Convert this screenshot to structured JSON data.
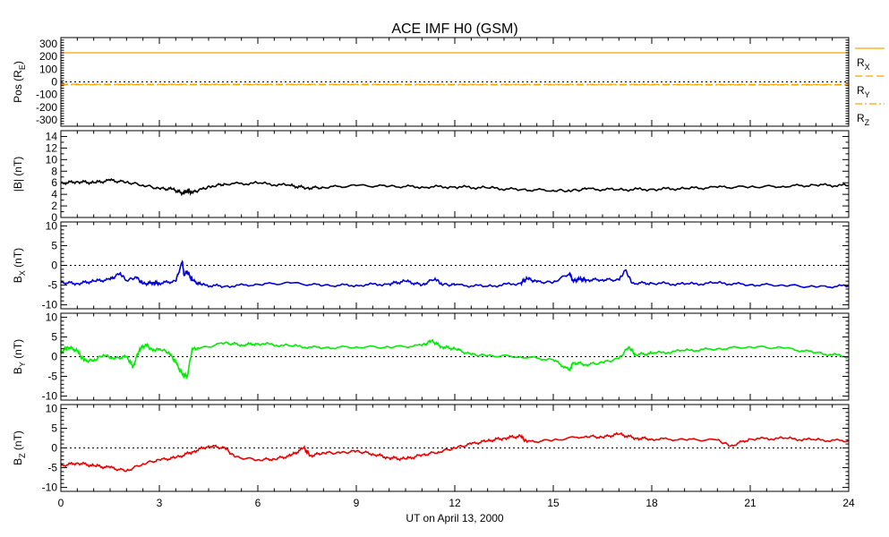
{
  "chart_data": {
    "type": "line",
    "title": "ACE IMF H0 (GSM)",
    "xlabel": "UT on April 13, 2000",
    "xlim": [
      0,
      24
    ],
    "x_ticks": [
      0,
      3,
      6,
      9,
      12,
      15,
      18,
      21,
      24
    ],
    "x_tick_labels": [
      "0",
      "3",
      "6",
      "9",
      "12",
      "15",
      "18",
      "21",
      "24"
    ],
    "panels": [
      {
        "id": "pos",
        "ylabel_main": "Pos (R",
        "ylabel_sub": "E",
        "ylabel_end": ")",
        "ylim": [
          -350,
          350
        ],
        "y_ticks": [
          300,
          200,
          100,
          0,
          -100,
          -200,
          -300
        ],
        "zero_line": true,
        "legend": [
          {
            "main": "R",
            "sub": "X",
            "style": "solid",
            "color": "#ffa500"
          },
          {
            "main": "R",
            "sub": "Y",
            "style": "dashed",
            "color": "#ffa500"
          },
          {
            "main": "R",
            "sub": "Z",
            "style": "dashdot",
            "color": "#ffa500"
          }
        ],
        "series": [
          {
            "name": "R_X",
            "color": "#ffa500",
            "style": "solid",
            "x": [
              0,
              24
            ],
            "values": [
              230,
              230
            ]
          },
          {
            "name": "R_Y",
            "color": "#ffa500",
            "style": "dashed",
            "x": [
              0,
              24
            ],
            "values": [
              -18,
              -20
            ]
          },
          {
            "name": "R_Z",
            "color": "#ffa500",
            "style": "dashdot",
            "x": [
              0,
              24
            ],
            "values": [
              -22,
              -24
            ]
          }
        ]
      },
      {
        "id": "btot",
        "ylabel_main": "|B| (nT)",
        "ylabel_sub": "",
        "ylabel_end": "",
        "ylim": [
          0,
          15
        ],
        "y_ticks": [
          14,
          12,
          10,
          8,
          6,
          4,
          2,
          0
        ],
        "zero_line": false,
        "series": [
          {
            "name": "|B|",
            "color": "#000000",
            "style": "solid",
            "x": [
              0,
              0.5,
              1,
              1.5,
              2,
              2.5,
              3,
              3.4,
              3.7,
              3.85,
              4,
              4.3,
              4.6,
              5,
              6,
              7,
              7.5,
              8,
              9,
              10,
              11,
              12,
              13,
              14,
              15,
              15.5,
              16,
              17,
              18,
              19,
              20,
              21,
              22,
              23,
              24
            ],
            "values": [
              5.9,
              6.2,
              6.0,
              6.4,
              6.1,
              5.6,
              5.0,
              4.9,
              4.2,
              4.6,
              4.3,
              4.9,
              5.4,
              5.8,
              5.9,
              5.5,
              5.1,
              5.2,
              5.5,
              5.4,
              5.3,
              5.3,
              5.1,
              4.8,
              4.7,
              4.6,
              4.9,
              4.8,
              4.9,
              5.0,
              5.2,
              5.3,
              5.4,
              5.6,
              5.5
            ]
          }
        ]
      },
      {
        "id": "bx",
        "ylabel_main": "B",
        "ylabel_sub": "X",
        "ylabel_end": " (nT)",
        "ylim": [
          -11,
          11
        ],
        "y_ticks": [
          10,
          5,
          0,
          -5,
          -10
        ],
        "zero_line": true,
        "series": [
          {
            "name": "B_X",
            "color": "#0000dd",
            "style": "solid",
            "x": [
              0,
              0.5,
              1,
              1.5,
              1.8,
              2.0,
              2.3,
              2.5,
              2.8,
              3,
              3.5,
              3.7,
              3.75,
              3.85,
              4.0,
              4.3,
              5,
              6,
              7,
              8,
              9,
              10,
              10.5,
              11,
              11.4,
              11.6,
              12,
              13,
              14,
              14.2,
              14.5,
              15,
              15.5,
              15.6,
              15.8,
              16,
              16.5,
              17,
              17.2,
              17.4,
              18,
              19,
              20,
              21,
              22,
              23,
              24
            ],
            "values": [
              -4.3,
              -4.6,
              -4.0,
              -3.6,
              -2.0,
              -3.8,
              -3.0,
              -4.7,
              -4.4,
              -4.5,
              -4.0,
              1.0,
              -2.5,
              -1.5,
              -3.8,
              -5.0,
              -5.3,
              -4.8,
              -4.5,
              -5.1,
              -5.0,
              -4.7,
              -4.0,
              -5.0,
              -3.3,
              -4.8,
              -5.0,
              -5.3,
              -4.5,
              -3.3,
              -4.2,
              -4.3,
              -2.0,
              -4.0,
              -3.5,
              -3.7,
              -3.6,
              -3.7,
              -1.2,
              -4.5,
              -4.5,
              -4.8,
              -4.5,
              -4.9,
              -5.0,
              -5.5,
              -5.2
            ]
          }
        ]
      },
      {
        "id": "by",
        "ylabel_main": "B",
        "ylabel_sub": "Y",
        "ylabel_end": " (nT)",
        "ylim": [
          -11,
          11
        ],
        "y_ticks": [
          10,
          5,
          0,
          -5,
          -10
        ],
        "zero_line": true,
        "series": [
          {
            "name": "B_Y",
            "color": "#00ee00",
            "style": "solid",
            "x": [
              0,
              0.2,
              0.5,
              0.7,
              1,
              1.3,
              1.6,
              2,
              2.2,
              2.4,
              2.6,
              2.8,
              3,
              3.3,
              3.5,
              3.7,
              3.85,
              4.0,
              4.2,
              5,
              5.5,
              6,
              7,
              8,
              9,
              10,
              11,
              11.3,
              11.6,
              12,
              12.5,
              13,
              14,
              15,
              15.5,
              15.6,
              16,
              16.5,
              17,
              17.3,
              17.5,
              18,
              19,
              20,
              21,
              22,
              23,
              24
            ],
            "values": [
              1.0,
              2.5,
              1.5,
              -1.0,
              -1.0,
              0.5,
              -0.5,
              0.0,
              -2.5,
              2.0,
              3.0,
              1.5,
              2.0,
              1.0,
              -1.5,
              -4.5,
              -5.0,
              2.0,
              2.0,
              3.5,
              3.0,
              3.3,
              2.7,
              2.2,
              2.5,
              2.4,
              2.8,
              4.0,
              2.5,
              2.0,
              0.5,
              0.3,
              0.0,
              -0.8,
              -3.5,
              -1.5,
              -2.0,
              -1.5,
              -0.5,
              2.5,
              0.5,
              0.8,
              1.5,
              2.0,
              2.5,
              2.2,
              1.0,
              0.0
            ]
          }
        ]
      },
      {
        "id": "bz",
        "ylabel_main": "B",
        "ylabel_sub": "Z",
        "ylabel_end": " (nT)",
        "ylim": [
          -11,
          11
        ],
        "y_ticks": [
          10,
          5,
          0,
          -5,
          -10
        ],
        "zero_line": true,
        "series": [
          {
            "name": "B_Z",
            "color": "#ee0000",
            "style": "solid",
            "x": [
              0,
              0.5,
              1,
              1.5,
              2,
              2.5,
              3,
              3.5,
              4,
              4.5,
              5,
              5.3,
              6,
              6.5,
              7,
              7.4,
              7.6,
              8,
              8.5,
              9,
              9.5,
              10,
              10.5,
              11,
              11.5,
              12,
              12.5,
              13,
              13.5,
              14,
              14.2,
              15,
              16,
              16.5,
              17,
              17.5,
              18,
              19,
              20,
              20.4,
              21,
              22,
              23,
              24
            ],
            "values": [
              -4.5,
              -3.8,
              -4.5,
              -5.0,
              -5.8,
              -4.0,
              -3.0,
              -2.5,
              -1.0,
              0.5,
              0.0,
              -2.3,
              -3.0,
              -2.8,
              -2.0,
              0.0,
              -2.0,
              -1.2,
              -1.3,
              -0.8,
              -1.5,
              -2.5,
              -2.8,
              -1.8,
              -1.0,
              0.0,
              1.0,
              1.8,
              2.5,
              3.0,
              1.5,
              2.0,
              3.0,
              2.7,
              3.5,
              2.5,
              2.3,
              2.1,
              2.0,
              0.5,
              2.3,
              2.4,
              2.0,
              1.8
            ]
          }
        ]
      }
    ]
  }
}
